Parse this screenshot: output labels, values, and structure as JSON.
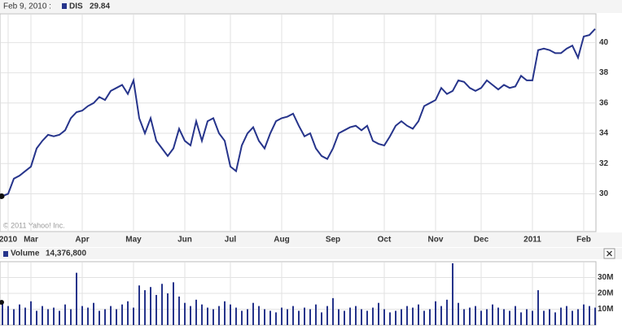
{
  "chart_data": [
    {
      "type": "line",
      "date_label": "Feb 9, 2010 :",
      "copyright": "© 2011 Yahoo! Inc.",
      "categories": [
        null,
        "2010",
        null,
        null,
        null,
        "Mar",
        null,
        null,
        null,
        null,
        null,
        null,
        null,
        null,
        "Apr",
        null,
        null,
        null,
        null,
        null,
        null,
        null,
        null,
        "May",
        null,
        null,
        null,
        null,
        null,
        null,
        null,
        null,
        "Jun",
        null,
        null,
        null,
        null,
        null,
        null,
        null,
        "Jul",
        null,
        null,
        null,
        null,
        null,
        null,
        null,
        null,
        "Aug",
        null,
        null,
        null,
        null,
        null,
        null,
        null,
        null,
        "Sep",
        null,
        null,
        null,
        null,
        null,
        null,
        null,
        null,
        "Oct",
        null,
        null,
        null,
        null,
        null,
        null,
        null,
        null,
        "Nov",
        null,
        null,
        null,
        null,
        null,
        null,
        null,
        "Dec",
        null,
        null,
        null,
        null,
        null,
        null,
        null,
        null,
        "2011",
        null,
        null,
        null,
        null,
        null,
        null,
        null,
        null,
        "Feb",
        null,
        null
      ],
      "series": [
        {
          "name": "DIS",
          "color": "#26348b",
          "readout": 29.84,
          "values": [
            29.84,
            30.0,
            31.0,
            31.2,
            31.5,
            31.8,
            33.0,
            33.5,
            33.9,
            33.8,
            33.9,
            34.2,
            35.0,
            35.4,
            35.5,
            35.8,
            36.0,
            36.4,
            36.2,
            36.8,
            37.0,
            37.2,
            36.6,
            37.5,
            35.0,
            34.0,
            35.0,
            33.5,
            33.0,
            32.5,
            33.0,
            34.3,
            33.5,
            33.2,
            34.8,
            33.5,
            34.8,
            35.0,
            34.0,
            33.5,
            31.8,
            31.5,
            33.2,
            34.0,
            34.4,
            33.5,
            33.0,
            34.0,
            34.8,
            35.0,
            35.1,
            35.3,
            34.5,
            33.8,
            34.0,
            33.0,
            32.5,
            32.3,
            33.0,
            34.0,
            34.2,
            34.4,
            34.5,
            34.2,
            34.5,
            33.5,
            33.3,
            33.2,
            33.8,
            34.5,
            34.8,
            34.5,
            34.3,
            34.8,
            35.8,
            36.0,
            36.2,
            37.0,
            36.6,
            36.8,
            37.5,
            37.4,
            37.0,
            36.8,
            37.0,
            37.5,
            37.2,
            36.9,
            37.2,
            37.0,
            37.1,
            37.8,
            37.5,
            37.5,
            39.5,
            39.6,
            39.5,
            39.3,
            39.3,
            39.6,
            39.8,
            39.0,
            40.4,
            40.5,
            40.9
          ]
        }
      ],
      "ylim": [
        27.5,
        41.9
      ],
      "yticks": [
        30,
        32,
        34,
        36,
        38,
        40
      ],
      "grid": true
    },
    {
      "type": "bar",
      "series": [
        {
          "name": "Volume",
          "color": "#26348b",
          "readout": {
            "value": 14376800,
            "label": "14,376,800"
          },
          "values": [
            14376800,
            12000000,
            10000000,
            13000000,
            11000000,
            15000000,
            9000000,
            12000000,
            10000000,
            11000000,
            9000000,
            13000000,
            10000000,
            33000000,
            12000000,
            11000000,
            14000000,
            9000000,
            10000000,
            12000000,
            10000000,
            13000000,
            15000000,
            11000000,
            25000000,
            22000000,
            24000000,
            19000000,
            26000000,
            20000000,
            27000000,
            18000000,
            14000000,
            12000000,
            16000000,
            13000000,
            11000000,
            10000000,
            12000000,
            15000000,
            13000000,
            11000000,
            9000000,
            10000000,
            14000000,
            12000000,
            10000000,
            9000000,
            8000000,
            11000000,
            10000000,
            12000000,
            9000000,
            11000000,
            10000000,
            13000000,
            8000000,
            12000000,
            17000000,
            10000000,
            9000000,
            11000000,
            12000000,
            10000000,
            9000000,
            11000000,
            14000000,
            10000000,
            8000000,
            9000000,
            10000000,
            12000000,
            11000000,
            13000000,
            9000000,
            10000000,
            15000000,
            12000000,
            16000000,
            39000000,
            14000000,
            10000000,
            11000000,
            12000000,
            9000000,
            10000000,
            13000000,
            11000000,
            10000000,
            9000000,
            12000000,
            8000000,
            10000000,
            9000000,
            22000000,
            9000000,
            10000000,
            8000000,
            11000000,
            12000000,
            9000000,
            10000000,
            13000000,
            12000000,
            11000000
          ]
        }
      ],
      "ylim": [
        0,
        40000000
      ],
      "yticks": [
        {
          "value": 10000000,
          "label": "10M"
        },
        {
          "value": 20000000,
          "label": "20M"
        },
        {
          "value": 30000000,
          "label": "30M"
        }
      ],
      "grid": true
    }
  ]
}
